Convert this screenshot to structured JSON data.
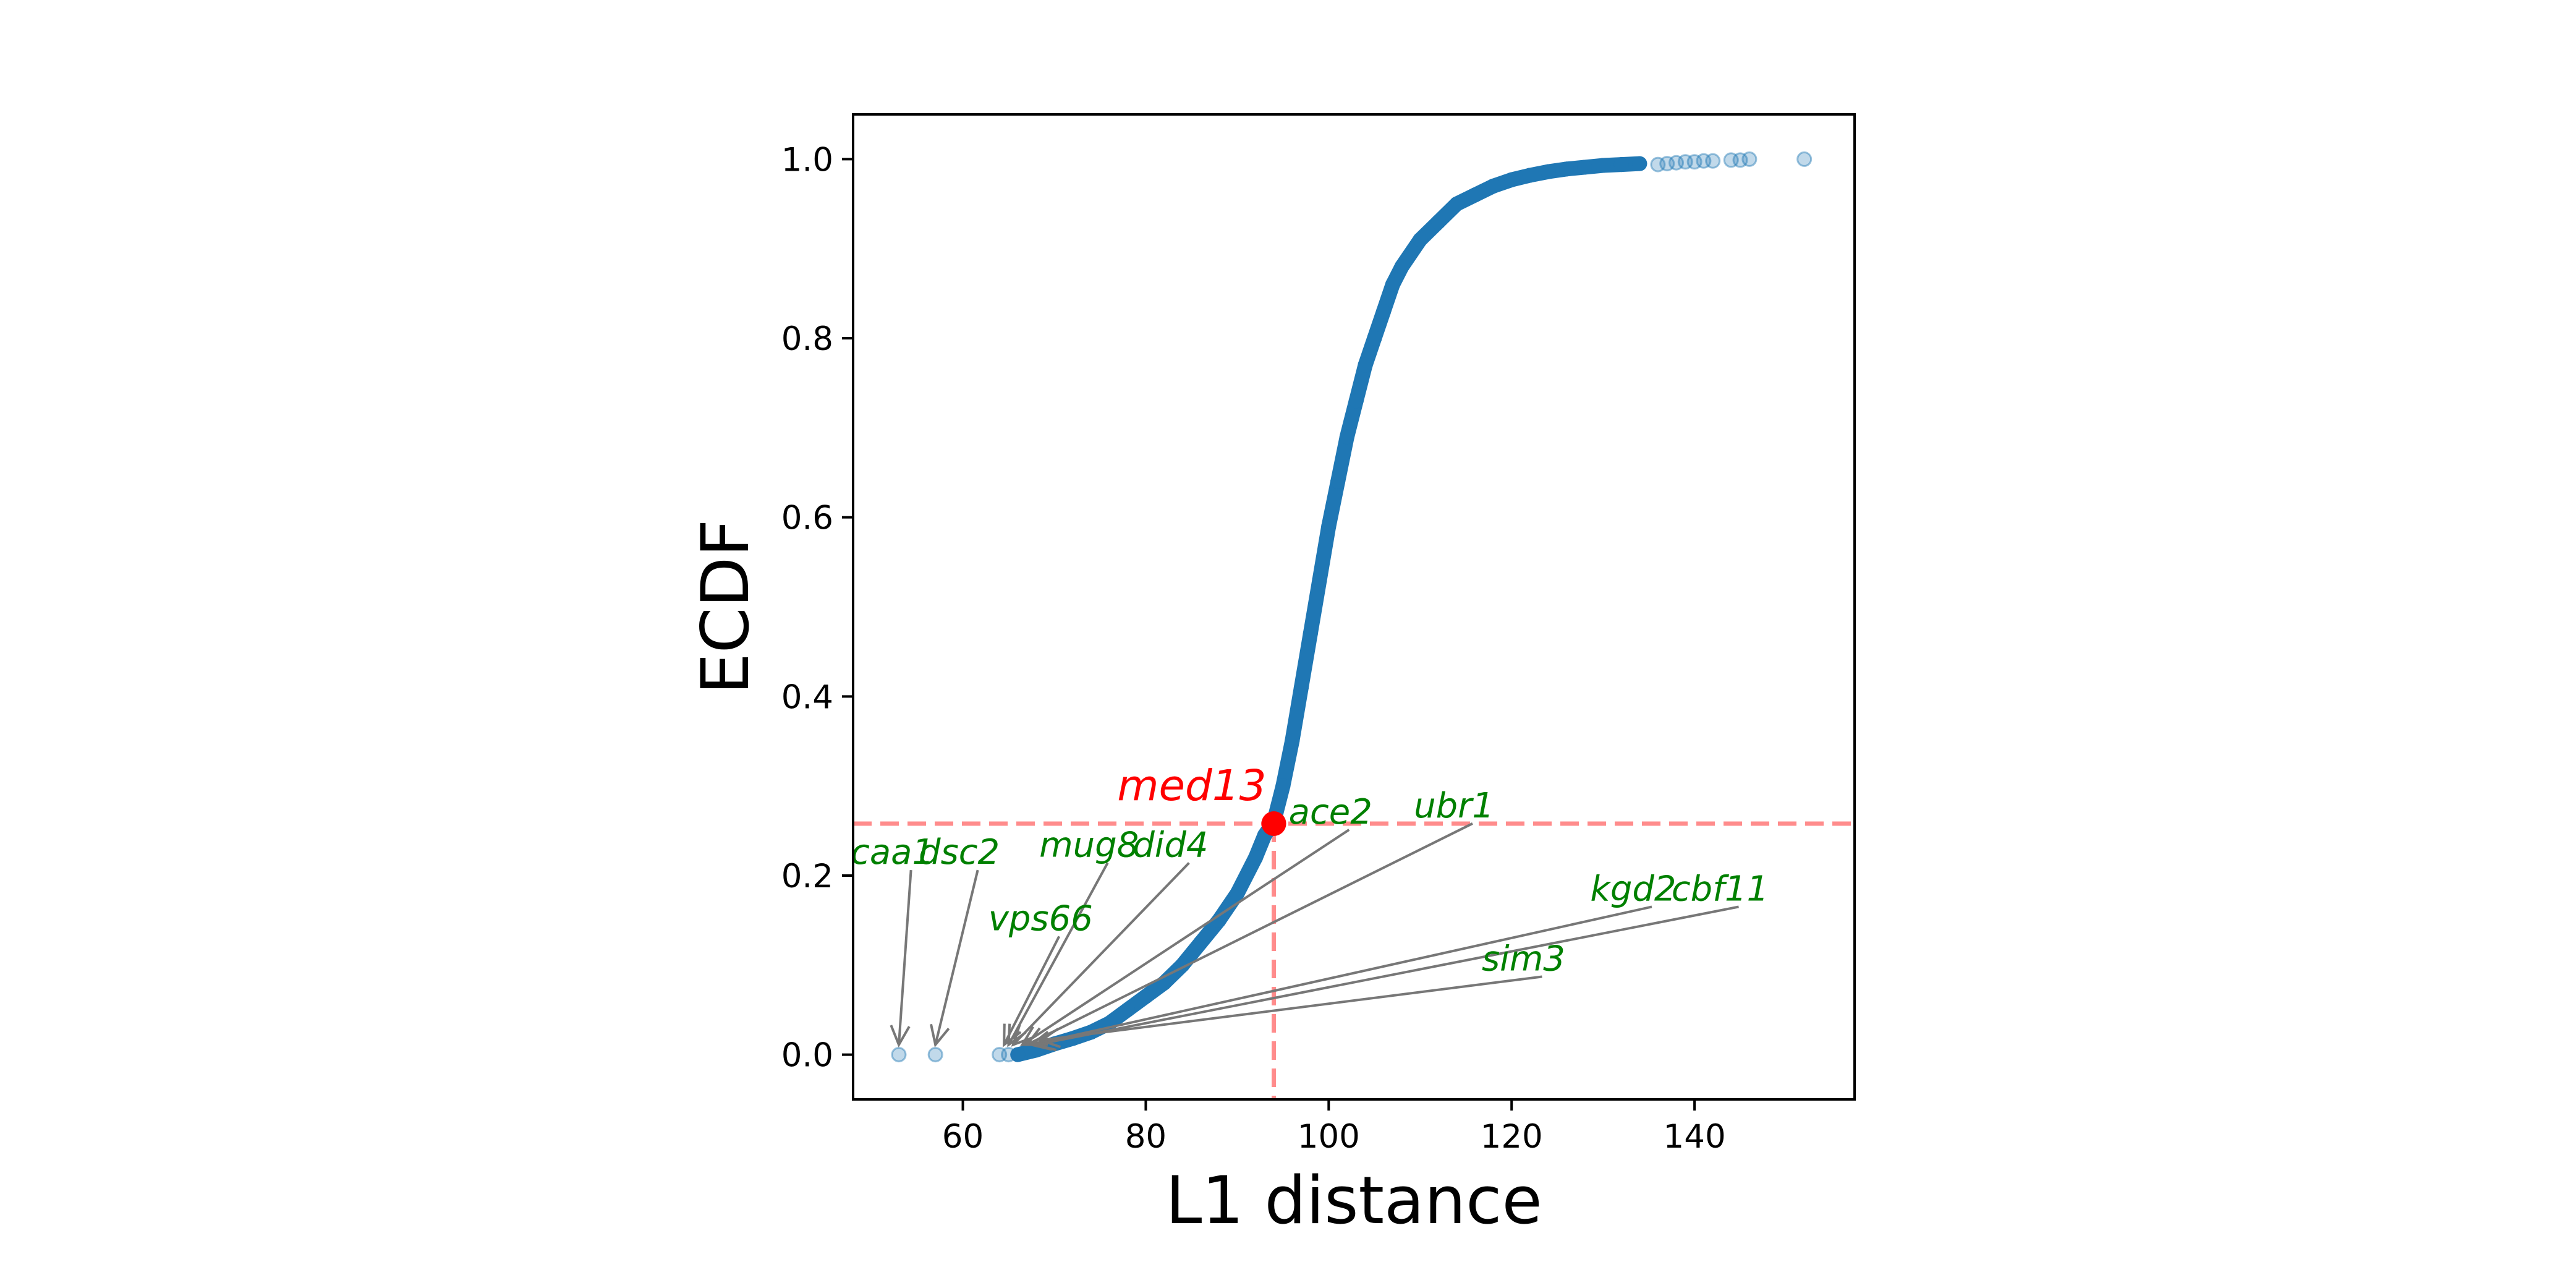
{
  "chart_data": {
    "type": "scatter",
    "title": "",
    "xlabel": "L1 distance",
    "ylabel": "ECDF",
    "xlim": [
      48,
      157.5
    ],
    "ylim": [
      -0.05,
      1.05
    ],
    "xticks": [
      60,
      80,
      100,
      120,
      140
    ],
    "yticks": [
      0.0,
      0.2,
      0.4,
      0.6,
      0.8,
      1.0
    ],
    "grid": false,
    "legend": "none",
    "colors": {
      "points": "#1f77b4",
      "highlight": "#ff0000",
      "reference": "#ff8c8c",
      "labels": "#008000",
      "arrows": "#777777"
    },
    "outlier_points": [
      {
        "x": 53,
        "y": 0.0
      },
      {
        "x": 57,
        "y": 0.0
      },
      {
        "x": 64,
        "y": 0.0
      },
      {
        "x": 65,
        "y": 0.0
      },
      {
        "x": 136,
        "y": 0.994
      },
      {
        "x": 137,
        "y": 0.995
      },
      {
        "x": 138,
        "y": 0.996
      },
      {
        "x": 139,
        "y": 0.997
      },
      {
        "x": 140,
        "y": 0.997
      },
      {
        "x": 141,
        "y": 0.998
      },
      {
        "x": 142,
        "y": 0.998
      },
      {
        "x": 144,
        "y": 0.999
      },
      {
        "x": 145,
        "y": 0.999
      },
      {
        "x": 146,
        "y": 1.0
      },
      {
        "x": 152,
        "y": 1.0
      }
    ],
    "ecdf_curve": [
      {
        "x": 66,
        "y": 0.0
      },
      {
        "x": 68,
        "y": 0.005
      },
      {
        "x": 70,
        "y": 0.012
      },
      {
        "x": 72,
        "y": 0.018
      },
      {
        "x": 74,
        "y": 0.025
      },
      {
        "x": 76,
        "y": 0.035
      },
      {
        "x": 78,
        "y": 0.05
      },
      {
        "x": 80,
        "y": 0.065
      },
      {
        "x": 82,
        "y": 0.08
      },
      {
        "x": 84,
        "y": 0.1
      },
      {
        "x": 86,
        "y": 0.125
      },
      {
        "x": 88,
        "y": 0.15
      },
      {
        "x": 90,
        "y": 0.18
      },
      {
        "x": 92,
        "y": 0.22
      },
      {
        "x": 93,
        "y": 0.245
      },
      {
        "x": 94,
        "y": 0.26
      },
      {
        "x": 95,
        "y": 0.3
      },
      {
        "x": 96,
        "y": 0.35
      },
      {
        "x": 97,
        "y": 0.41
      },
      {
        "x": 98,
        "y": 0.47
      },
      {
        "x": 99,
        "y": 0.53
      },
      {
        "x": 100,
        "y": 0.59
      },
      {
        "x": 101,
        "y": 0.64
      },
      {
        "x": 102,
        "y": 0.69
      },
      {
        "x": 103,
        "y": 0.73
      },
      {
        "x": 104,
        "y": 0.77
      },
      {
        "x": 105,
        "y": 0.8
      },
      {
        "x": 106,
        "y": 0.83
      },
      {
        "x": 107,
        "y": 0.86
      },
      {
        "x": 108,
        "y": 0.88
      },
      {
        "x": 110,
        "y": 0.91
      },
      {
        "x": 112,
        "y": 0.93
      },
      {
        "x": 114,
        "y": 0.95
      },
      {
        "x": 116,
        "y": 0.96
      },
      {
        "x": 118,
        "y": 0.97
      },
      {
        "x": 120,
        "y": 0.977
      },
      {
        "x": 122,
        "y": 0.982
      },
      {
        "x": 124,
        "y": 0.986
      },
      {
        "x": 126,
        "y": 0.989
      },
      {
        "x": 128,
        "y": 0.991
      },
      {
        "x": 130,
        "y": 0.993
      },
      {
        "x": 132,
        "y": 0.994
      },
      {
        "x": 134,
        "y": 0.995
      }
    ],
    "highlight": {
      "label": "med13",
      "x": 94,
      "y": 0.258
    },
    "annotations": [
      {
        "label": "caa1",
        "label_x": 52.3,
        "label_y": 0.213,
        "point_x": 53,
        "point_y": 0.0
      },
      {
        "label": "dsc2",
        "label_x": 59.6,
        "label_y": 0.213,
        "point_x": 57,
        "point_y": 0.0
      },
      {
        "label": "mug8",
        "label_x": 73.8,
        "label_y": 0.221,
        "point_x": 65,
        "point_y": 0.0
      },
      {
        "label": "did4",
        "label_x": 82.7,
        "label_y": 0.221,
        "point_x": 65.5,
        "point_y": 0.0
      },
      {
        "label": "vps66",
        "label_x": 68.5,
        "label_y": 0.139,
        "point_x": 64.5,
        "point_y": 0.0
      },
      {
        "label": "ace2",
        "label_x": 100.2,
        "label_y": 0.258,
        "point_x": 66.5,
        "point_y": 0.0
      },
      {
        "label": "ubr1",
        "label_x": 113.7,
        "label_y": 0.265,
        "point_x": 67,
        "point_y": 0.0
      },
      {
        "label": "kgd2",
        "label_x": 133.3,
        "label_y": 0.172,
        "point_x": 67.5,
        "point_y": 0.0
      },
      {
        "label": "cbf11",
        "label_x": 142.8,
        "label_y": 0.172,
        "point_x": 68,
        "point_y": 0.0
      },
      {
        "label": "sim3",
        "label_x": 121.3,
        "label_y": 0.094,
        "point_x": 68.5,
        "point_y": 0.005
      }
    ]
  }
}
